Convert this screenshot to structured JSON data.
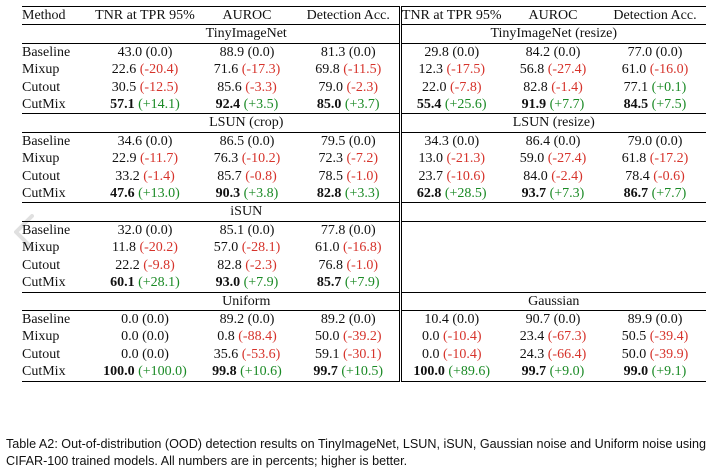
{
  "header": {
    "method": "Method",
    "col_tnr": "TNR at TPR 95%",
    "col_auroc": "AUROC",
    "col_det": "Detection Acc."
  },
  "sections": [
    {
      "left_title": "TinyImageNet",
      "right_title": "TinyImageNet (resize)",
      "rows": [
        {
          "method": "Baseline",
          "bold": false,
          "cells": [
            {
              "v": "43.0",
              "d": "(0.0)",
              "s": "zero"
            },
            {
              "v": "88.9",
              "d": "(0.0)",
              "s": "zero"
            },
            {
              "v": "81.3",
              "d": "(0.0)",
              "s": "zero"
            },
            {
              "v": "29.8",
              "d": "(0.0)",
              "s": "zero"
            },
            {
              "v": "84.2",
              "d": "(0.0)",
              "s": "zero"
            },
            {
              "v": "77.0",
              "d": "(0.0)",
              "s": "zero"
            }
          ]
        },
        {
          "method": "Mixup",
          "bold": false,
          "cells": [
            {
              "v": "22.6",
              "d": "(-20.4)",
              "s": "neg"
            },
            {
              "v": "71.6",
              "d": "(-17.3)",
              "s": "neg"
            },
            {
              "v": "69.8",
              "d": "(-11.5)",
              "s": "neg"
            },
            {
              "v": "12.3",
              "d": "(-17.5)",
              "s": "neg"
            },
            {
              "v": "56.8",
              "d": "(-27.4)",
              "s": "neg"
            },
            {
              "v": "61.0",
              "d": "(-16.0)",
              "s": "neg"
            }
          ]
        },
        {
          "method": "Cutout",
          "bold": false,
          "cells": [
            {
              "v": "30.5",
              "d": "(-12.5)",
              "s": "neg"
            },
            {
              "v": "85.6",
              "d": "(-3.3)",
              "s": "neg"
            },
            {
              "v": "79.0",
              "d": "(-2.3)",
              "s": "neg"
            },
            {
              "v": "22.0",
              "d": "(-7.8)",
              "s": "neg"
            },
            {
              "v": "82.8",
              "d": "(-1.4)",
              "s": "neg"
            },
            {
              "v": "77.1",
              "d": "(+0.1)",
              "s": "pos"
            }
          ]
        },
        {
          "method": "CutMix",
          "bold": true,
          "cells": [
            {
              "v": "57.1",
              "d": "(+14.1)",
              "s": "pos"
            },
            {
              "v": "92.4",
              "d": "(+3.5)",
              "s": "pos"
            },
            {
              "v": "85.0",
              "d": "(+3.7)",
              "s": "pos"
            },
            {
              "v": "55.4",
              "d": "(+25.6)",
              "s": "pos"
            },
            {
              "v": "91.9",
              "d": "(+7.7)",
              "s": "pos"
            },
            {
              "v": "84.5",
              "d": "(+7.5)",
              "s": "pos"
            }
          ]
        }
      ]
    },
    {
      "left_title": "LSUN (crop)",
      "right_title": "LSUN (resize)",
      "rows": [
        {
          "method": "Baseline",
          "bold": false,
          "cells": [
            {
              "v": "34.6",
              "d": "(0.0)",
              "s": "zero"
            },
            {
              "v": "86.5",
              "d": "(0.0)",
              "s": "zero"
            },
            {
              "v": "79.5",
              "d": "(0.0)",
              "s": "zero"
            },
            {
              "v": "34.3",
              "d": "(0.0)",
              "s": "zero"
            },
            {
              "v": "86.4",
              "d": "(0.0)",
              "s": "zero"
            },
            {
              "v": "79.0",
              "d": "(0.0)",
              "s": "zero"
            }
          ]
        },
        {
          "method": "Mixup",
          "bold": false,
          "cells": [
            {
              "v": "22.9",
              "d": "(-11.7)",
              "s": "neg"
            },
            {
              "v": "76.3",
              "d": "(-10.2)",
              "s": "neg"
            },
            {
              "v": "72.3",
              "d": "(-7.2)",
              "s": "neg"
            },
            {
              "v": "13.0",
              "d": "(-21.3)",
              "s": "neg"
            },
            {
              "v": "59.0",
              "d": "(-27.4)",
              "s": "neg"
            },
            {
              "v": "61.8",
              "d": "(-17.2)",
              "s": "neg"
            }
          ]
        },
        {
          "method": "Cutout",
          "bold": false,
          "cells": [
            {
              "v": "33.2",
              "d": "(-1.4)",
              "s": "neg"
            },
            {
              "v": "85.7",
              "d": "(-0.8)",
              "s": "neg"
            },
            {
              "v": "78.5",
              "d": "(-1.0)",
              "s": "neg"
            },
            {
              "v": "23.7",
              "d": "(-10.6)",
              "s": "neg"
            },
            {
              "v": "84.0",
              "d": "(-2.4)",
              "s": "neg"
            },
            {
              "v": "78.4",
              "d": "(-0.6)",
              "s": "neg"
            }
          ]
        },
        {
          "method": "CutMix",
          "bold": true,
          "cells": [
            {
              "v": "47.6",
              "d": "(+13.0)",
              "s": "pos"
            },
            {
              "v": "90.3",
              "d": "(+3.8)",
              "s": "pos"
            },
            {
              "v": "82.8",
              "d": "(+3.3)",
              "s": "pos"
            },
            {
              "v": "62.8",
              "d": "(+28.5)",
              "s": "pos"
            },
            {
              "v": "93.7",
              "d": "(+7.3)",
              "s": "pos"
            },
            {
              "v": "86.7",
              "d": "(+7.7)",
              "s": "pos"
            }
          ]
        }
      ]
    },
    {
      "single_title": "iSUN",
      "rows": [
        {
          "method": "Baseline",
          "bold": false,
          "cells": [
            {
              "v": "32.0",
              "d": "(0.0)",
              "s": "zero"
            },
            {
              "v": "85.1",
              "d": "(0.0)",
              "s": "zero"
            },
            {
              "v": "77.8",
              "d": "(0.0)",
              "s": "zero"
            }
          ]
        },
        {
          "method": "Mixup",
          "bold": false,
          "cells": [
            {
              "v": "11.8",
              "d": "(-20.2)",
              "s": "neg"
            },
            {
              "v": "57.0",
              "d": "(-28.1)",
              "s": "neg"
            },
            {
              "v": "61.0",
              "d": "(-16.8)",
              "s": "neg"
            }
          ]
        },
        {
          "method": "Cutout",
          "bold": false,
          "cells": [
            {
              "v": "22.2",
              "d": "(-9.8)",
              "s": "neg"
            },
            {
              "v": "82.8",
              "d": "(-2.3)",
              "s": "neg"
            },
            {
              "v": "76.8",
              "d": "(-1.0)",
              "s": "neg"
            }
          ]
        },
        {
          "method": "CutMix",
          "bold": true,
          "cells": [
            {
              "v": "60.1",
              "d": "(+28.1)",
              "s": "pos"
            },
            {
              "v": "93.0",
              "d": "(+7.9)",
              "s": "pos"
            },
            {
              "v": "85.7",
              "d": "(+7.9)",
              "s": "pos"
            }
          ]
        }
      ]
    },
    {
      "left_title": "Uniform",
      "right_title": "Gaussian",
      "rows": [
        {
          "method": "Baseline",
          "bold": false,
          "cells": [
            {
              "v": "0.0",
              "d": "(0.0)",
              "s": "zero"
            },
            {
              "v": "89.2",
              "d": "(0.0)",
              "s": "zero"
            },
            {
              "v": "89.2",
              "d": "(0.0)",
              "s": "zero"
            },
            {
              "v": "10.4",
              "d": "(0.0)",
              "s": "zero"
            },
            {
              "v": "90.7",
              "d": "(0.0)",
              "s": "zero"
            },
            {
              "v": "89.9",
              "d": "(0.0)",
              "s": "zero"
            }
          ]
        },
        {
          "method": "Mixup",
          "bold": false,
          "cells": [
            {
              "v": "0.0",
              "d": "(0.0)",
              "s": "zero"
            },
            {
              "v": "0.8",
              "d": "(-88.4)",
              "s": "neg"
            },
            {
              "v": "50.0",
              "d": "(-39.2)",
              "s": "neg"
            },
            {
              "v": "0.0",
              "d": "(-10.4)",
              "s": "neg"
            },
            {
              "v": "23.4",
              "d": "(-67.3)",
              "s": "neg"
            },
            {
              "v": "50.5",
              "d": "(-39.4)",
              "s": "neg"
            }
          ]
        },
        {
          "method": "Cutout",
          "bold": false,
          "cells": [
            {
              "v": "0.0",
              "d": "(0.0)",
              "s": "zero"
            },
            {
              "v": "35.6",
              "d": "(-53.6)",
              "s": "neg"
            },
            {
              "v": "59.1",
              "d": "(-30.1)",
              "s": "neg"
            },
            {
              "v": "0.0",
              "d": "(-10.4)",
              "s": "neg"
            },
            {
              "v": "24.3",
              "d": "(-66.4)",
              "s": "neg"
            },
            {
              "v": "50.0",
              "d": "(-39.9)",
              "s": "neg"
            }
          ]
        },
        {
          "method": "CutMix",
          "bold": true,
          "cells": [
            {
              "v": "100.0",
              "d": "(+100.0)",
              "s": "pos"
            },
            {
              "v": "99.8",
              "d": "(+10.6)",
              "s": "pos"
            },
            {
              "v": "99.7",
              "d": "(+10.5)",
              "s": "pos"
            },
            {
              "v": "100.0",
              "d": "(+89.6)",
              "s": "pos"
            },
            {
              "v": "99.7",
              "d": "(+9.0)",
              "s": "pos"
            },
            {
              "v": "99.0",
              "d": "(+9.1)",
              "s": "pos"
            }
          ]
        }
      ]
    }
  ],
  "caption": "Table A2: Out-of-distribution (OOD) detection results on TinyImageNet, LSUN, iSUN, Gaussian noise and Uniform noise using CIFAR-100 trained models. All numbers are in percents; higher is better.",
  "colors": {
    "negative_delta": "#d6332b",
    "positive_delta": "#1a8a25",
    "text": "#111111"
  },
  "icons": {
    "prev": "chevron-left-icon"
  }
}
